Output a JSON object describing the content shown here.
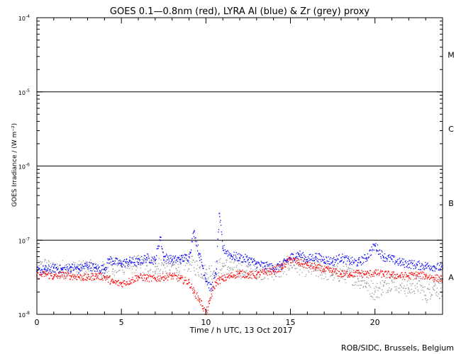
{
  "chart_data": {
    "type": "scatter",
    "title": "GOES 0.1—0.8nm (red), LYRA Al (blue) & Zr (grey) proxy",
    "xlabel": "Time / h UTC, 13 Oct 2017",
    "ylabel": "GOES Irradiance / (W m⁻²)",
    "credit": "ROB/SIDC, Brussels, Belgium",
    "x_range": [
      0,
      24
    ],
    "x_ticks": [
      0,
      5,
      10,
      15,
      20
    ],
    "x_tick_labels": [
      "0",
      "5",
      "10",
      "15",
      "20"
    ],
    "y_scale": "log",
    "y_range": [
      1e-08,
      0.0001
    ],
    "y_ticks": [
      1e-08,
      1e-07,
      1e-06,
      1e-05,
      0.0001
    ],
    "y_tick_labels": [
      {
        "base": "10",
        "exp": "-8"
      },
      {
        "base": "10",
        "exp": "-7"
      },
      {
        "base": "10",
        "exp": "-6"
      },
      {
        "base": "10",
        "exp": "-5"
      },
      {
        "base": "10",
        "exp": "-4"
      }
    ],
    "flare_thresholds": [
      1e-07,
      1e-06,
      1e-05
    ],
    "class_labels": [
      {
        "label": "A",
        "level": 3.16e-08
      },
      {
        "label": "B",
        "level": 3.16e-07
      },
      {
        "label": "C",
        "level": 3.16e-06
      },
      {
        "label": "M",
        "level": 3.16e-05
      }
    ],
    "series": [
      {
        "name": "GOES 0.1-0.8nm",
        "color": "#ff0000",
        "x": [
          0,
          0.5,
          1,
          1.5,
          2,
          2.5,
          3,
          3.5,
          4,
          4.5,
          5,
          5.5,
          6,
          6.5,
          7,
          7.5,
          8,
          8.5,
          9,
          9.3,
          9.6,
          9.8,
          10,
          10.2,
          10.4,
          10.6,
          10.8,
          11,
          11.5,
          12,
          12.5,
          13,
          13.5,
          14,
          14.5,
          15,
          15.5,
          16,
          16.5,
          17,
          17.5,
          18,
          18.5,
          19,
          19.5,
          20,
          20.5,
          21,
          21.5,
          22,
          22.5,
          23,
          23.5,
          24
        ],
        "values": [
          3.3e-08,
          3.5e-08,
          3.2e-08,
          3.4e-08,
          3.3e-08,
          3.2e-08,
          3.1e-08,
          3.3e-08,
          3.2e-08,
          2.7e-08,
          2.6e-08,
          2.8e-08,
          3.2e-08,
          3.1e-08,
          3e-08,
          3.2e-08,
          3.3e-08,
          3e-08,
          2.7e-08,
          2e-08,
          1.6e-08,
          1.3e-08,
          1e-08,
          1.4e-08,
          2.1e-08,
          2.7e-08,
          2.9e-08,
          3e-08,
          3.3e-08,
          3.6e-08,
          3.4e-08,
          3.4e-08,
          3.7e-08,
          3.9e-08,
          4.3e-08,
          5.5e-08,
          5e-08,
          4.6e-08,
          4.3e-08,
          4e-08,
          3.8e-08,
          3.5e-08,
          3.5e-08,
          3.6e-08,
          3.5e-08,
          3.6e-08,
          3.5e-08,
          3.4e-08,
          3.3e-08,
          3.3e-08,
          3.4e-08,
          3.3e-08,
          3.1e-08,
          3e-08
        ]
      },
      {
        "name": "LYRA Al proxy",
        "color": "#0000ff",
        "x": [
          0,
          0.5,
          1,
          1.5,
          2,
          2.5,
          3,
          3.5,
          4,
          4.3,
          4.5,
          5,
          5.5,
          6,
          6.5,
          7,
          7.3,
          7.5,
          8,
          8.5,
          9,
          9.3,
          9.6,
          9.8,
          10,
          10.3,
          10.6,
          10.8,
          11,
          11.5,
          12,
          12.5,
          13,
          13.5,
          14,
          14.5,
          15,
          15.5,
          16,
          16.5,
          17,
          17.5,
          18,
          18.5,
          19,
          19.5,
          20,
          20.5,
          21,
          21.5,
          22,
          22.5,
          23,
          23.5,
          24
        ],
        "values": [
          3.8e-08,
          4e-08,
          4.2e-08,
          4e-08,
          4.3e-08,
          4.1e-08,
          4.6e-08,
          4.2e-08,
          4.1e-08,
          5.5e-08,
          5.2e-08,
          4.8e-08,
          5.2e-08,
          5e-08,
          5.8e-08,
          5.3e-08,
          1.1e-07,
          6e-08,
          5.4e-08,
          5.5e-08,
          6e-08,
          1.3e-07,
          6.5e-08,
          4.5e-08,
          3e-08,
          2.2e-08,
          3.5e-08,
          2.3e-07,
          7.8e-08,
          6.2e-08,
          5.8e-08,
          5.5e-08,
          4.8e-08,
          4.5e-08,
          4.2e-08,
          4.6e-08,
          5.8e-08,
          6.5e-08,
          5.5e-08,
          6e-08,
          5.5e-08,
          5.2e-08,
          5.8e-08,
          5.2e-08,
          5e-08,
          5.8e-08,
          8.5e-08,
          6e-08,
          5.5e-08,
          5e-08,
          4.8e-08,
          4.6e-08,
          4.5e-08,
          4.4e-08,
          4.2e-08
        ]
      },
      {
        "name": "LYRA Zr proxy",
        "color": "#999999",
        "x": [
          0,
          0.5,
          1,
          1.5,
          2,
          2.5,
          3,
          3.5,
          4,
          4.5,
          5,
          5.5,
          6,
          6.5,
          7,
          7.5,
          8,
          8.5,
          9,
          10,
          11,
          12,
          13,
          14,
          14.5,
          15,
          15.5,
          16,
          16.5,
          17,
          17.5,
          18,
          18.5,
          19,
          19.5,
          20,
          20.5,
          21,
          21.5,
          22,
          22.5,
          23,
          23.5,
          24
        ],
        "values": [
          4e-08,
          4.5e-08,
          3.8e-08,
          4.2e-08,
          3.9e-08,
          4e-08,
          4.3e-08,
          3.8e-08,
          4e-08,
          4.1e-08,
          4.5e-08,
          4.6e-08,
          4.8e-08,
          4.5e-08,
          4.4e-08,
          4.7e-08,
          4.6e-08,
          4.8e-08,
          5e-08,
          3.6e-08,
          4.5e-08,
          4e-08,
          3.9e-08,
          3.8e-08,
          4e-08,
          5e-08,
          4.5e-08,
          4.2e-08,
          4e-08,
          3.8e-08,
          3.6e-08,
          3.5e-08,
          3.4e-08,
          3e-08,
          2.6e-08,
          2e-08,
          2.4e-08,
          2.8e-08,
          2.5e-08,
          2.2e-08,
          2.6e-08,
          1.8e-08,
          2.4e-08,
          2e-08
        ]
      }
    ]
  }
}
